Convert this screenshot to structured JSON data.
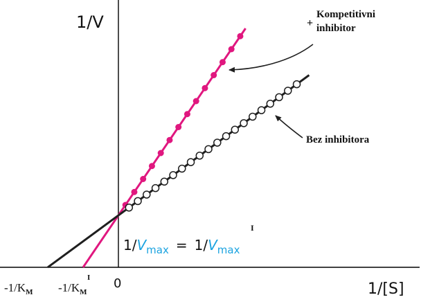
{
  "chart_data": {
    "type": "line",
    "x_axis_label": "1/[S]",
    "y_axis_label": "1/V",
    "origin_label": "0",
    "x_intercept_labels": {
      "km": {
        "base": "-1/K",
        "sub": "M"
      },
      "km_inhibited": {
        "base": "-1/K",
        "sub": "M",
        "sup": "I"
      }
    },
    "y_intercept_label": {
      "left": {
        "prefix": "1/",
        "var": "V",
        "sub": "max"
      },
      "equals": "=",
      "right": {
        "prefix": "1/",
        "var": "V",
        "sub": "max",
        "sup": "I"
      }
    },
    "series": [
      {
        "name": "Kompetitivni inhibitor",
        "label_prefix": "+",
        "label_lines": [
          "Kompetitivni",
          "inhibitor"
        ],
        "color": "#e0177f",
        "marker": "filled",
        "x_intercept": -1.0,
        "y_intercept": 1,
        "slope": 1.0,
        "x_range": [
          -1.0,
          3.6
        ],
        "point_x": [
          0.2,
          0.45,
          0.7,
          0.95,
          1.2,
          1.45,
          1.7,
          1.95,
          2.2,
          2.45,
          2.7,
          2.95,
          3.2,
          3.45
        ]
      },
      {
        "name": "Bez inhibitora",
        "label_lines": [
          "Bez inhibitora"
        ],
        "color": "#1f1f1f",
        "marker": "open",
        "x_intercept": -2.0,
        "y_intercept": 1,
        "slope": 0.5,
        "x_range": [
          -2.0,
          5.4
        ],
        "point_x": [
          0.3,
          0.55,
          0.8,
          1.05,
          1.3,
          1.55,
          1.8,
          2.05,
          2.3,
          2.55,
          2.8,
          3.05,
          3.3,
          3.55,
          3.8,
          4.05,
          4.3,
          4.55,
          4.8,
          5.05
        ]
      }
    ],
    "axis_colors": {
      "axis": "#000000",
      "accent": "#1ba3e0"
    }
  }
}
